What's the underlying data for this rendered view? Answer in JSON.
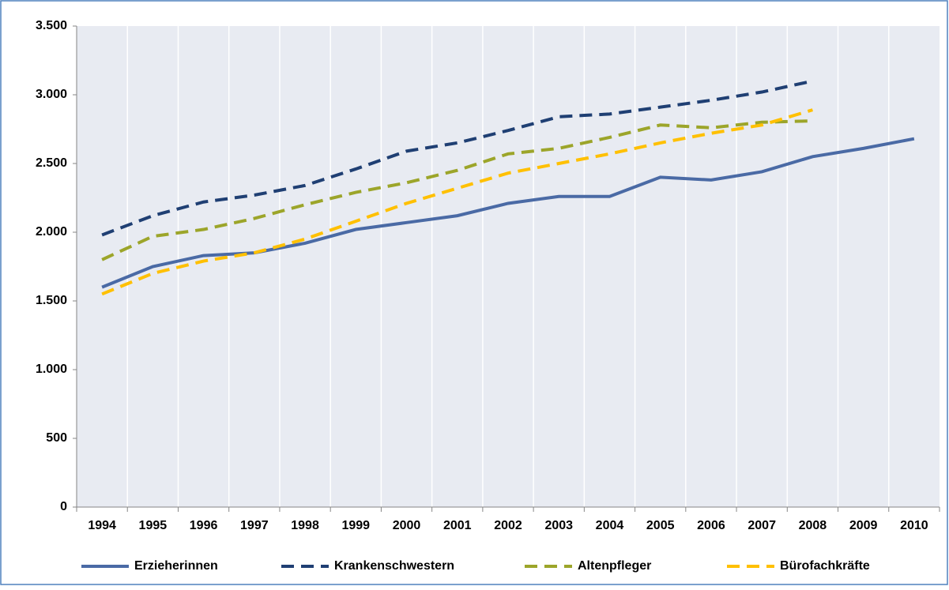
{
  "chart_data": {
    "type": "line",
    "categories": [
      "1994",
      "1995",
      "1996",
      "1997",
      "1998",
      "1999",
      "2000",
      "2001",
      "2002",
      "2003",
      "2004",
      "2005",
      "2006",
      "2007",
      "2008",
      "2009",
      "2010"
    ],
    "series": [
      {
        "name": "Erzieherinnen",
        "color": "#4a6aa5",
        "line_style": "solid",
        "values": [
          1600,
          1750,
          1830,
          1850,
          1920,
          2020,
          2070,
          2120,
          2210,
          2260,
          2260,
          2400,
          2380,
          2440,
          2550,
          2610,
          2680
        ]
      },
      {
        "name": "Krankenschwestern",
        "color": "#1f3f73",
        "line_style": "dashed",
        "values": [
          1980,
          2120,
          2220,
          2270,
          2340,
          2460,
          2590,
          2650,
          2740,
          2840,
          2860,
          2910,
          2960,
          3020,
          3100,
          null,
          null
        ]
      },
      {
        "name": "Altenpfleger",
        "color": "#9ca52a",
        "line_style": "dashed",
        "values": [
          1800,
          1970,
          2020,
          2100,
          2200,
          2290,
          2360,
          2450,
          2570,
          2610,
          2690,
          2780,
          2760,
          2800,
          2810,
          null,
          null
        ]
      },
      {
        "name": "Bürofachkräfte",
        "color": "#ffc000",
        "line_style": "dashed",
        "values": [
          1550,
          1700,
          1790,
          1850,
          1950,
          2080,
          2210,
          2320,
          2430,
          2500,
          2570,
          2650,
          2720,
          2780,
          2890,
          null,
          null
        ]
      }
    ],
    "ylim": [
      0,
      3500
    ],
    "yticks": [
      0,
      500,
      {
        "value": 1000,
        "label": "1.000"
      },
      {
        "value": 1500,
        "label": "1.500"
      },
      {
        "value": 2000,
        "label": "2.000"
      },
      {
        "value": 2500,
        "label": "2.500"
      },
      {
        "value": 3000,
        "label": "3.000"
      },
      {
        "value": 3500,
        "label": "3.500"
      }
    ],
    "legend": "bottom"
  }
}
